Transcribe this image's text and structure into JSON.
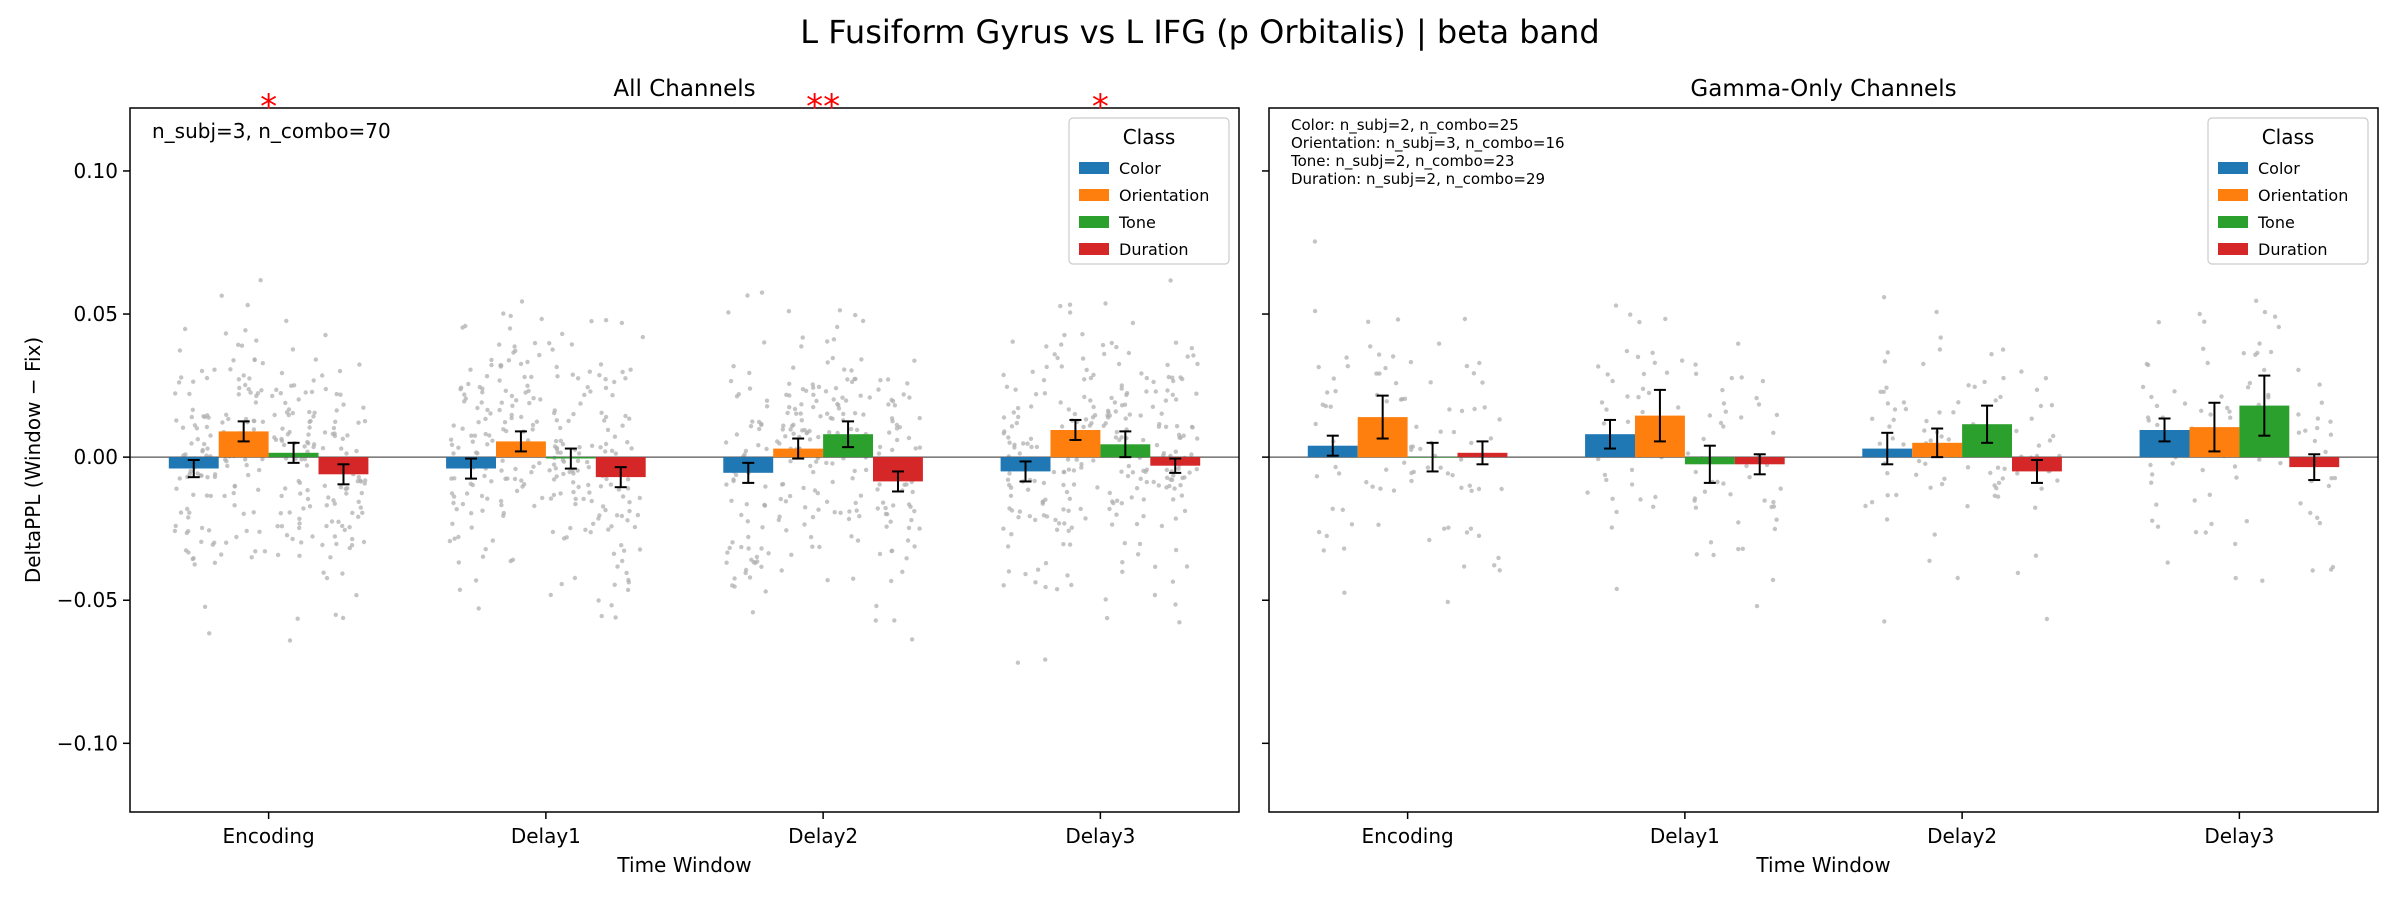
{
  "title": "L Fusiform Gyrus vs L IFG (p Orbitalis)  |  beta band",
  "colors": {
    "Color": "#1f77b4",
    "Orientation": "#ff7f0e",
    "Tone": "#2ca02c",
    "Duration": "#d62728",
    "sig": "#ff0000",
    "jitter": "#b0b0b0"
  },
  "chart_data": [
    {
      "type": "bar",
      "title": "All Channels",
      "xlabel": "Time Window",
      "ylabel": "DeltaPPL (Window − Fix)",
      "ylim": [
        -0.124,
        0.122
      ],
      "yticks": [
        -0.1,
        -0.05,
        0.0,
        0.05,
        0.1
      ],
      "ytick_labels": [
        "−0.10",
        "−0.05",
        "0.00",
        "0.05",
        "0.10"
      ],
      "categories": [
        "Encoding",
        "Delay1",
        "Delay2",
        "Delay3"
      ],
      "legend_title": "Class",
      "legend_position": "top-right",
      "annotation": [
        "n_subj=3, n_combo=70"
      ],
      "significance": [
        "*",
        "",
        "**",
        "*"
      ],
      "series": [
        {
          "name": "Color",
          "values": [
            -0.004,
            -0.004,
            -0.0055,
            -0.005
          ],
          "errors": [
            0.003,
            0.0035,
            0.0035,
            0.0035
          ]
        },
        {
          "name": "Orientation",
          "values": [
            0.009,
            0.0055,
            0.003,
            0.0095
          ],
          "errors": [
            0.0035,
            0.0035,
            0.0035,
            0.0035
          ]
        },
        {
          "name": "Tone",
          "values": [
            0.0015,
            -0.0005,
            0.008,
            0.0045
          ],
          "errors": [
            0.0035,
            0.0035,
            0.0045,
            0.0045
          ]
        },
        {
          "name": "Duration",
          "values": [
            -0.006,
            -0.007,
            -0.0085,
            -0.003
          ],
          "errors": [
            0.0035,
            0.0035,
            0.0035,
            0.0025
          ]
        }
      ]
    },
    {
      "type": "bar",
      "title": "Gamma-Only Channels",
      "xlabel": "Time Window",
      "ylabel": "",
      "ylim": [
        -0.124,
        0.122
      ],
      "categories": [
        "Encoding",
        "Delay1",
        "Delay2",
        "Delay3"
      ],
      "legend_title": "Class",
      "legend_position": "top-right",
      "annotation": [
        "Color: n_subj=2, n_combo=25",
        "Orientation: n_subj=3, n_combo=16",
        "Tone: n_subj=2, n_combo=23",
        "Duration: n_subj=2, n_combo=29"
      ],
      "significance": [
        "",
        "",
        "",
        ""
      ],
      "series": [
        {
          "name": "Color",
          "values": [
            0.004,
            0.008,
            0.003,
            0.0095
          ],
          "errors": [
            0.0035,
            0.005,
            0.0055,
            0.004
          ]
        },
        {
          "name": "Orientation",
          "values": [
            0.014,
            0.0145,
            0.005,
            0.0105
          ],
          "errors": [
            0.0075,
            0.009,
            0.005,
            0.0085
          ]
        },
        {
          "name": "Tone",
          "values": [
            0.0,
            -0.0025,
            0.0115,
            0.018
          ],
          "errors": [
            0.005,
            0.0065,
            0.0065,
            0.0105
          ]
        },
        {
          "name": "Duration",
          "values": [
            0.0015,
            -0.0025,
            -0.005,
            -0.0035
          ],
          "errors": [
            0.004,
            0.0035,
            0.004,
            0.0045
          ]
        }
      ]
    }
  ]
}
